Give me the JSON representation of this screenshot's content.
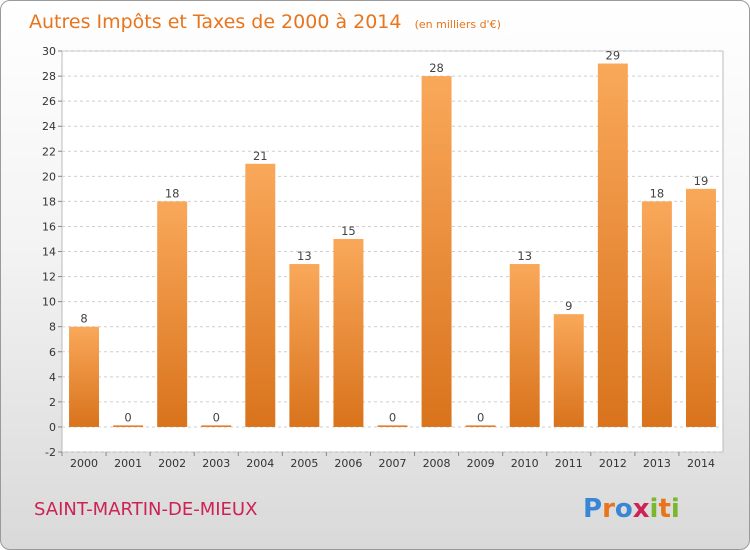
{
  "chart_data": {
    "type": "bar",
    "title": "Autres Impôts et Taxes de 2000 à 2014",
    "subtitle": "(en milliers d'€)",
    "categories": [
      "2000",
      "2001",
      "2002",
      "2003",
      "2004",
      "2005",
      "2006",
      "2007",
      "2008",
      "2009",
      "2010",
      "2011",
      "2012",
      "2013",
      "2014"
    ],
    "values": [
      8,
      0,
      18,
      0,
      21,
      13,
      15,
      0,
      28,
      0,
      13,
      9,
      29,
      18,
      19
    ],
    "ylim": [
      -2,
      30
    ],
    "yticks": [
      -2,
      0,
      2,
      4,
      6,
      8,
      10,
      12,
      14,
      16,
      18,
      20,
      22,
      24,
      26,
      28,
      30
    ],
    "grid": true,
    "colors": {
      "bar_light": "#f9a85a",
      "bar_dark": "#d9731c",
      "accent": "#e8741c"
    }
  },
  "commune": "SAINT-MARTIN-DE-MIEUX",
  "logo": {
    "letters": [
      "P",
      "r",
      "o",
      "x",
      "i",
      "t",
      "i"
    ],
    "colors": [
      "#3a86d6",
      "#e8741c",
      "#3a86d6",
      "#cc2255",
      "#79b82e",
      "#e8741c",
      "#79b82e"
    ]
  }
}
